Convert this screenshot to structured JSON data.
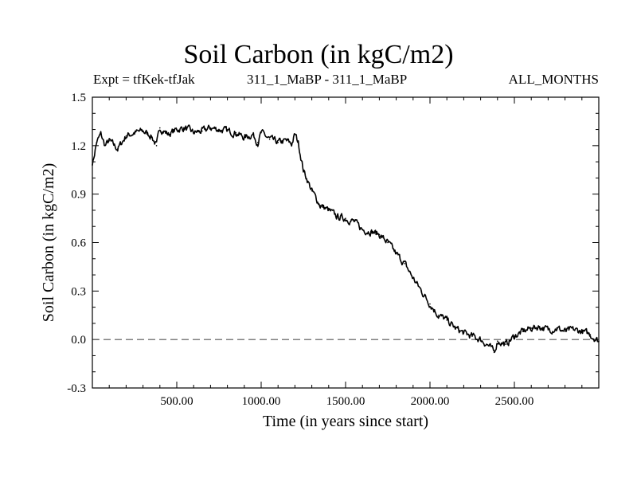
{
  "chart_data": {
    "type": "line",
    "title": "Soil Carbon (in kgC/m2)",
    "subtitle_left": "Expt = tfKek-tfJak",
    "subtitle_center": "311_1_MaBP - 311_1_MaBP",
    "subtitle_right": "ALL_MONTHS",
    "xlabel": "Time (in years since start)",
    "ylabel": "Soil Carbon (in kgC/m2)",
    "xlim": [
      0,
      3000
    ],
    "ylim": [
      -0.3,
      1.5
    ],
    "x_ticks": [
      500,
      1000,
      1500,
      2000,
      2500
    ],
    "x_tick_labels": [
      "500.00",
      "1000.00",
      "1500.00",
      "2000.00",
      "2500.00"
    ],
    "y_ticks": [
      -0.3,
      0.0,
      0.3,
      0.6,
      0.9,
      1.2,
      1.5
    ],
    "y_tick_labels": [
      "-0.3",
      "0.0",
      "0.3",
      "0.6",
      "0.9",
      "1.2",
      "1.5"
    ],
    "reference_line": {
      "y": 0.0,
      "style": "dashed"
    },
    "series": [
      {
        "x": [
          0,
          25,
          50,
          75,
          100,
          150,
          200,
          250,
          300,
          350,
          380,
          400,
          450,
          500,
          550,
          600,
          650,
          700,
          750,
          800,
          850,
          900,
          950,
          980,
          1000,
          1050,
          1100,
          1150,
          1180,
          1200,
          1220,
          1250,
          1300,
          1350,
          1400,
          1450,
          1500,
          1550,
          1600,
          1650,
          1700,
          1750,
          1800,
          1850,
          1900,
          1950,
          2000,
          2050,
          2100,
          2150,
          2200,
          2250,
          2300,
          2350,
          2380,
          2400,
          2450,
          2500,
          2550,
          2600,
          2650,
          2700,
          2750,
          2800,
          2850,
          2900,
          2950,
          3000
        ],
        "y": [
          1.08,
          1.22,
          1.27,
          1.2,
          1.23,
          1.18,
          1.26,
          1.28,
          1.29,
          1.26,
          1.2,
          1.31,
          1.27,
          1.3,
          1.31,
          1.28,
          1.29,
          1.31,
          1.3,
          1.29,
          1.28,
          1.25,
          1.27,
          1.22,
          1.28,
          1.24,
          1.22,
          1.23,
          1.21,
          1.27,
          1.22,
          1.05,
          0.92,
          0.83,
          0.8,
          0.76,
          0.75,
          0.73,
          0.68,
          0.67,
          0.65,
          0.6,
          0.53,
          0.47,
          0.38,
          0.3,
          0.22,
          0.15,
          0.12,
          0.07,
          0.04,
          0.02,
          0.0,
          -0.04,
          -0.08,
          -0.01,
          -0.03,
          0.02,
          0.05,
          0.07,
          0.08,
          0.06,
          0.07,
          0.05,
          0.06,
          0.05,
          0.03,
          -0.01
        ]
      }
    ]
  }
}
